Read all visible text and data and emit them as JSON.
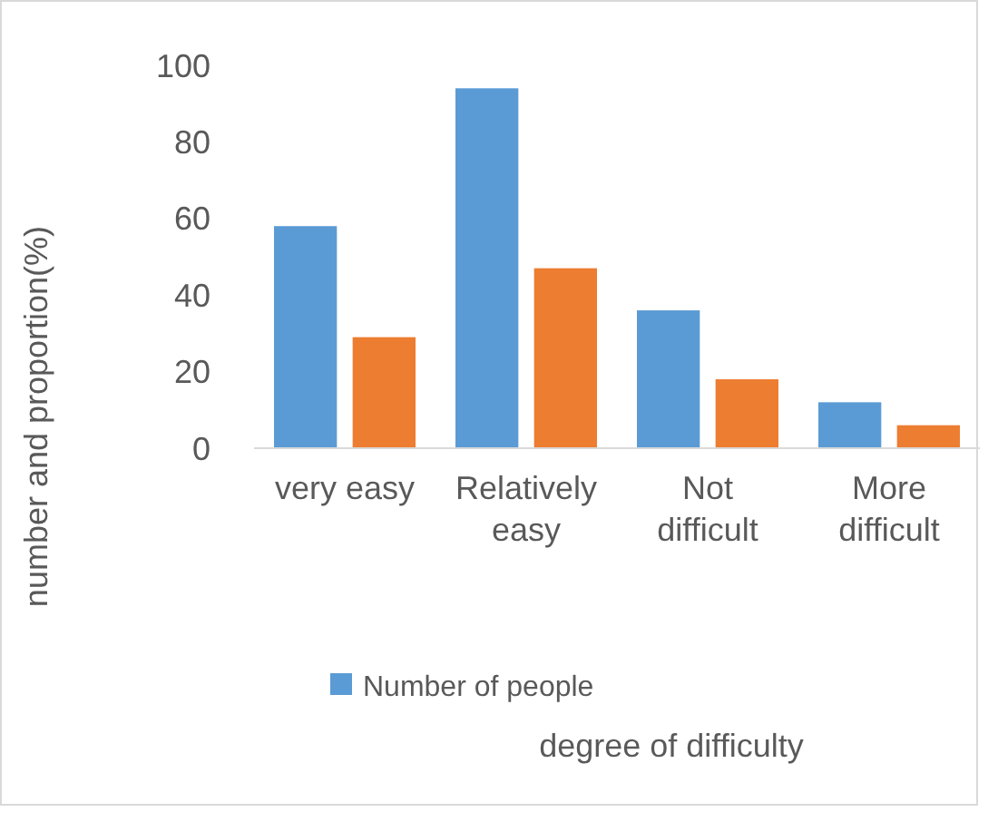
{
  "chart_data": {
    "type": "bar",
    "annotations": [
      "degree of difficulty"
    ],
    "ylabel": "number and proportion(%)",
    "categories": [
      "very easy",
      "Relatively easy",
      "Not difficult",
      "More difficult"
    ],
    "series": [
      {
        "name": "Number of people",
        "color": "#5b9bd5",
        "values": [
          58,
          94,
          36,
          12
        ]
      },
      {
        "color": "#ed7d31",
        "values": [
          29,
          47,
          18,
          6
        ]
      }
    ],
    "ylim": [
      0,
      100
    ],
    "yticks": [
      0,
      20,
      40,
      60,
      80,
      100
    ],
    "grid": false,
    "legend": "bottom"
  }
}
